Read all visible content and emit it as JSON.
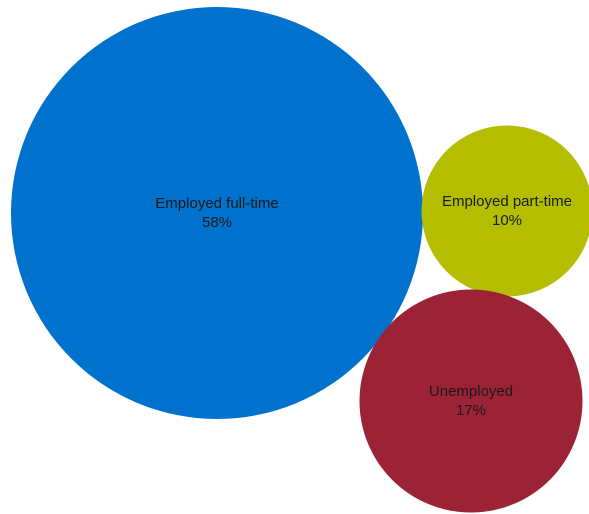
{
  "chart_data": {
    "type": "bubble",
    "series": [
      {
        "name": "Employed full-time",
        "value": 58,
        "value_label": "58%",
        "color": "#0072CE"
      },
      {
        "name": "Employed part-time",
        "value": 10,
        "value_label": "10%",
        "color": "#B5BD00"
      },
      {
        "name": "Unemployed",
        "value": 17,
        "value_label": "17%",
        "color": "#9B2335"
      }
    ]
  }
}
